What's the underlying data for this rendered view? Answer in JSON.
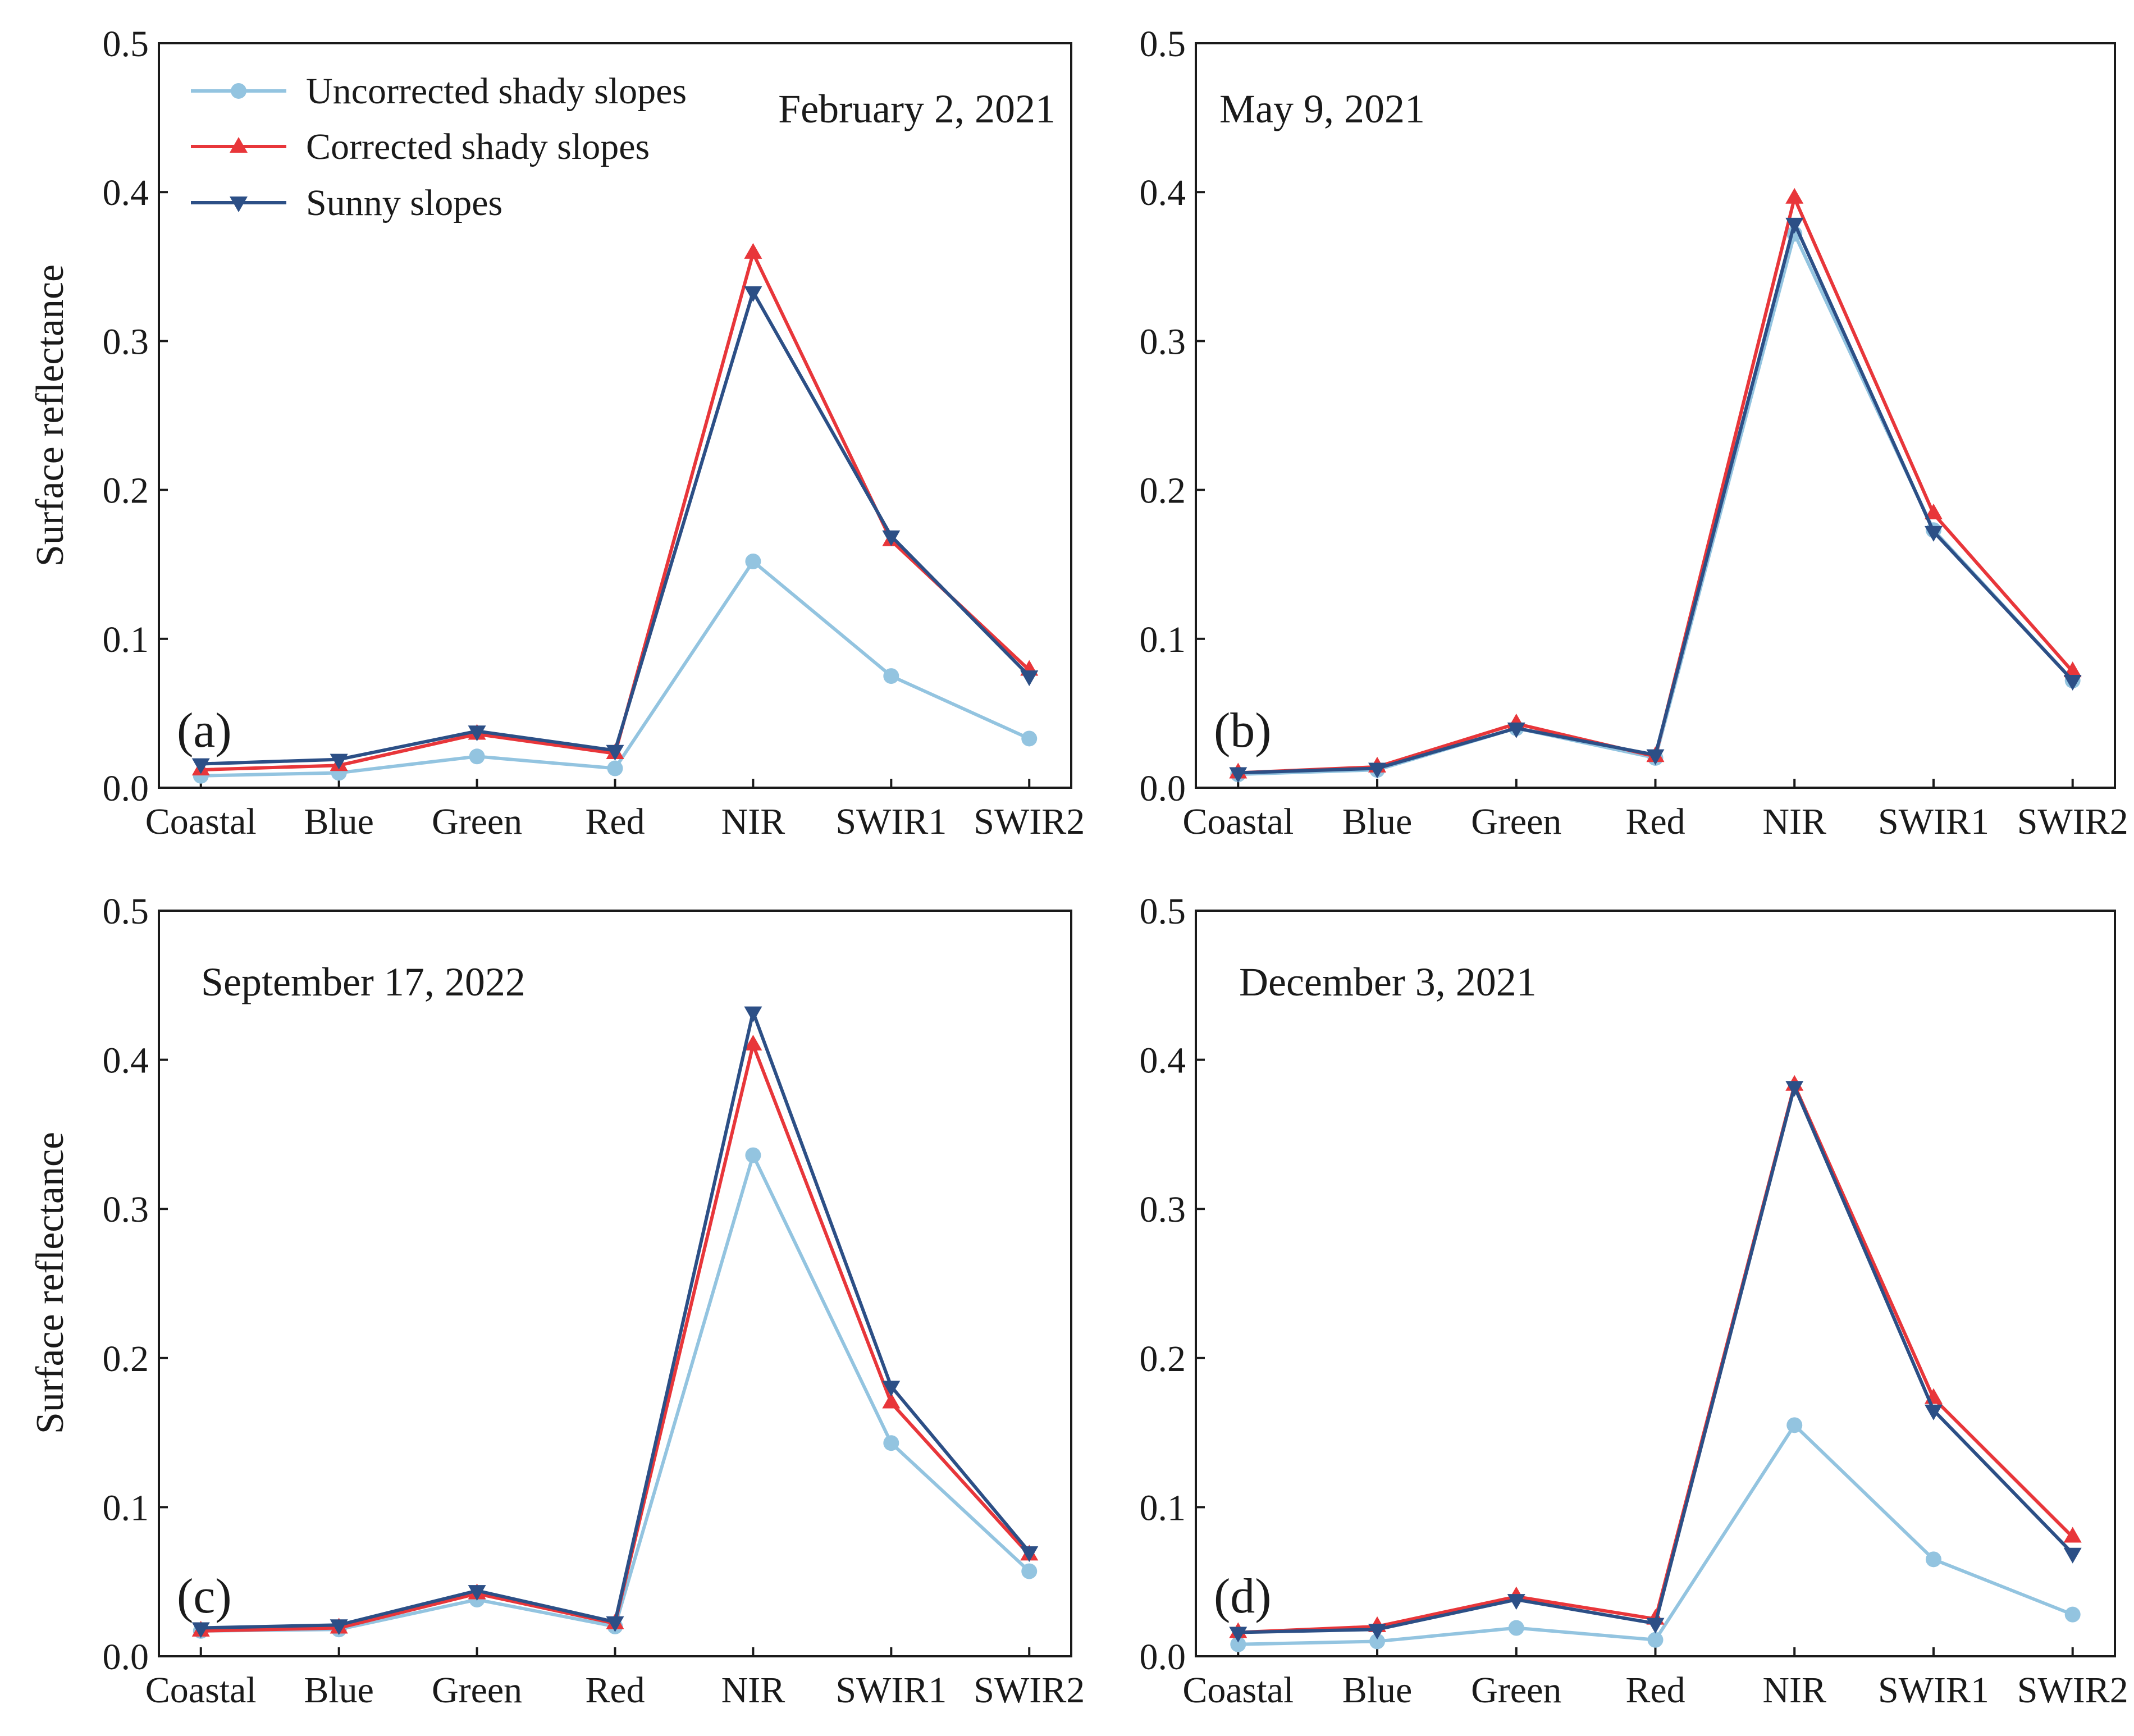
{
  "figure": {
    "ylabel": "Surface reflectance",
    "categories": [
      "Coastal",
      "Blue",
      "Green",
      "Red",
      "NIR",
      "SWIR1",
      "SWIR2"
    ],
    "yticks": [
      "0.0",
      "0.1",
      "0.2",
      "0.3",
      "0.4",
      "0.5"
    ],
    "legend": [
      {
        "name": "Uncorrected shady slopes",
        "color": "#93c4e0",
        "marker": "circle"
      },
      {
        "name": "Corrected shady slopes",
        "color": "#e8363a",
        "marker": "triangle-up"
      },
      {
        "name": "Sunny slopes",
        "color": "#2c4f86",
        "marker": "triangle-down"
      }
    ]
  },
  "chart_data": [
    {
      "type": "line",
      "panel": "(a)",
      "title": "February 2, 2021",
      "categories": [
        "Coastal",
        "Blue",
        "Green",
        "Red",
        "NIR",
        "SWIR1",
        "SWIR2"
      ],
      "ylabel": "Surface reflectance",
      "ylim": [
        0,
        0.5
      ],
      "series": [
        {
          "name": "Uncorrected shady slopes",
          "values": [
            0.008,
            0.01,
            0.021,
            0.013,
            0.152,
            0.075,
            0.033
          ]
        },
        {
          "name": "Corrected shady slopes",
          "values": [
            0.012,
            0.015,
            0.036,
            0.023,
            0.359,
            0.166,
            0.079
          ]
        },
        {
          "name": "Sunny slopes",
          "values": [
            0.016,
            0.019,
            0.038,
            0.025,
            0.333,
            0.169,
            0.075
          ]
        }
      ]
    },
    {
      "type": "line",
      "panel": "(b)",
      "title": "May 9, 2021",
      "categories": [
        "Coastal",
        "Blue",
        "Green",
        "Red",
        "NIR",
        "SWIR1",
        "SWIR2"
      ],
      "ylabel": "",
      "ylim": [
        0,
        0.5
      ],
      "series": [
        {
          "name": "Uncorrected shady slopes",
          "values": [
            0.009,
            0.012,
            0.04,
            0.02,
            0.372,
            0.173,
            0.072
          ]
        },
        {
          "name": "Corrected shady slopes",
          "values": [
            0.01,
            0.014,
            0.043,
            0.021,
            0.396,
            0.184,
            0.078
          ]
        },
        {
          "name": "Sunny slopes",
          "values": [
            0.01,
            0.013,
            0.04,
            0.022,
            0.379,
            0.172,
            0.072
          ]
        }
      ]
    },
    {
      "type": "line",
      "panel": "(c)",
      "title": "September 17, 2022",
      "categories": [
        "Coastal",
        "Blue",
        "Green",
        "Red",
        "NIR",
        "SWIR1",
        "SWIR2"
      ],
      "ylabel": "Surface reflectance",
      "ylim": [
        0,
        0.5
      ],
      "series": [
        {
          "name": "Uncorrected shady slopes",
          "values": [
            0.017,
            0.018,
            0.038,
            0.02,
            0.336,
            0.143,
            0.057
          ]
        },
        {
          "name": "Corrected shady slopes",
          "values": [
            0.017,
            0.019,
            0.042,
            0.022,
            0.41,
            0.17,
            0.068
          ]
        },
        {
          "name": "Sunny slopes",
          "values": [
            0.019,
            0.021,
            0.044,
            0.023,
            0.432,
            0.181,
            0.07
          ]
        }
      ]
    },
    {
      "type": "line",
      "panel": "(d)",
      "title": "December 3, 2021",
      "categories": [
        "Coastal",
        "Blue",
        "Green",
        "Red",
        "NIR",
        "SWIR1",
        "SWIR2"
      ],
      "ylabel": "",
      "ylim": [
        0,
        0.5
      ],
      "series": [
        {
          "name": "Uncorrected shady slopes",
          "values": [
            0.008,
            0.01,
            0.019,
            0.011,
            0.155,
            0.065,
            0.028
          ]
        },
        {
          "name": "Corrected shady slopes",
          "values": [
            0.016,
            0.02,
            0.04,
            0.025,
            0.383,
            0.173,
            0.08
          ]
        },
        {
          "name": "Sunny slopes",
          "values": [
            0.016,
            0.018,
            0.038,
            0.022,
            0.382,
            0.165,
            0.069
          ]
        }
      ]
    }
  ]
}
